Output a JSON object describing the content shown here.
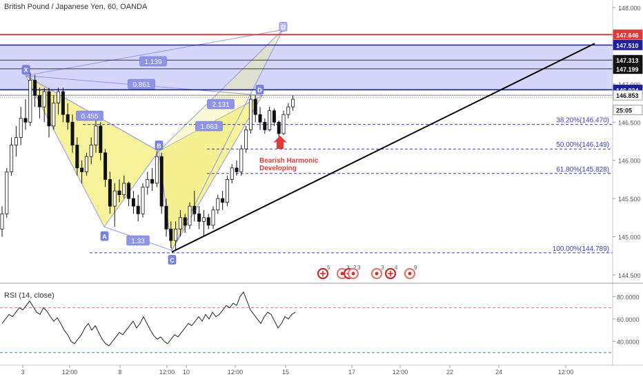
{
  "header": {
    "title": "British Pound / Japanese Yen, 60, OANDA"
  },
  "colors": {
    "up": "#111111",
    "down": "#111111",
    "red_line": "#e53935",
    "blue_line": "#1e1ea0",
    "zone_fill": "#c9cdf7",
    "harmonic_fill": "#f3ef7a",
    "harmonic_line": "#8f96e8",
    "fib_line": "#3b3bb0",
    "trend_line": "#000000",
    "rsi_line": "#222222"
  },
  "chart_data": [
    {
      "type": "candlestick",
      "title": "British Pound / Japanese Yen, 60, OANDA",
      "ylim": [
        144.4,
        148.1
      ],
      "price_ticks": [
        "148.000",
        "147.500",
        "147.000",
        "146.500",
        "146.000",
        "145.500",
        "145.000",
        "144.500"
      ],
      "x_ticks": [
        "3",
        "12:00",
        "8",
        "12:00",
        "10",
        "12:00",
        "15",
        "17",
        "12:00",
        "22",
        "24",
        "12:00"
      ],
      "price_labels": [
        {
          "text": "147.646",
          "value": 147.646,
          "style": "red"
        },
        {
          "text": "147.510",
          "value": 147.51,
          "style": "blue"
        },
        {
          "text": "147.313",
          "value": 147.313,
          "style": "black"
        },
        {
          "text": "147.199",
          "value": 147.199,
          "style": "black"
        },
        {
          "text": "146.924",
          "value": 146.924,
          "style": "blue"
        },
        {
          "text": "146.853",
          "value": 146.853,
          "style": "outline"
        },
        {
          "text": "25:05",
          "value": 146.66,
          "style": "outline"
        }
      ],
      "resistance_lines": [
        147.646,
        147.51,
        147.313,
        147.199,
        146.924,
        146.853
      ],
      "zone": [
        146.924,
        147.51
      ],
      "fib_levels": [
        {
          "label": "38.20%(146.470)",
          "value": 146.47
        },
        {
          "label": "50.00%(146.149)",
          "value": 146.149
        },
        {
          "label": "61.80%(145.828)",
          "value": 145.828
        },
        {
          "label": "100.00%(144.789)",
          "value": 144.789
        }
      ],
      "pattern_points": [
        {
          "label": "X",
          "value": 147.11
        },
        {
          "label": "A",
          "value": 145.13
        },
        {
          "label": "B",
          "value": 146.12
        },
        {
          "label": "C",
          "value": 144.82
        },
        {
          "label": "D",
          "value": 146.85
        },
        {
          "label": "D",
          "value": 147.71
        }
      ],
      "ratios": [
        "1.139",
        "0.861",
        "0.455",
        "2.131",
        "1.663",
        "1.33"
      ],
      "annotation": {
        "line1": "Bearish Harmonic",
        "line2": "Developing"
      },
      "events": [
        {
          "icon": "flag-uk-icon",
          "count": "5"
        },
        {
          "icon": "flag-jp-icon",
          "count": "3"
        },
        {
          "icon": "flag-uk-icon",
          "count": "2"
        },
        {
          "icon": "flag-jp-icon",
          "count": "3"
        },
        {
          "icon": "flag-jp-icon",
          "count": "3"
        },
        {
          "icon": "flag-uk-icon",
          "count": "4"
        },
        {
          "icon": "flag-jp-icon",
          "count": "9"
        }
      ],
      "series": [
        {
          "values": [
            {
              "o": 145.1,
              "h": 145.4,
              "l": 145.0,
              "c": 145.3
            },
            {
              "o": 145.3,
              "h": 145.9,
              "l": 145.25,
              "c": 145.85
            },
            {
              "o": 145.85,
              "h": 146.3,
              "l": 145.8,
              "c": 146.2
            },
            {
              "o": 146.2,
              "h": 146.45,
              "l": 146.05,
              "c": 146.3
            },
            {
              "o": 146.3,
              "h": 146.7,
              "l": 146.2,
              "c": 146.55
            },
            {
              "o": 146.55,
              "h": 146.8,
              "l": 146.4,
              "c": 146.5
            },
            {
              "o": 146.5,
              "h": 147.15,
              "l": 146.45,
              "c": 147.05
            },
            {
              "o": 147.05,
              "h": 147.12,
              "l": 146.7,
              "c": 146.85
            },
            {
              "o": 146.85,
              "h": 146.95,
              "l": 146.55,
              "c": 146.7
            },
            {
              "o": 146.7,
              "h": 146.95,
              "l": 146.5,
              "c": 146.9
            },
            {
              "o": 146.9,
              "h": 146.95,
              "l": 146.3,
              "c": 146.45
            },
            {
              "o": 146.45,
              "h": 146.85,
              "l": 146.4,
              "c": 146.75
            },
            {
              "o": 146.75,
              "h": 146.95,
              "l": 146.6,
              "c": 146.9
            },
            {
              "o": 146.9,
              "h": 146.95,
              "l": 146.5,
              "c": 146.6
            },
            {
              "o": 146.6,
              "h": 146.75,
              "l": 146.4,
              "c": 146.5
            },
            {
              "o": 146.5,
              "h": 146.6,
              "l": 146.1,
              "c": 146.2
            },
            {
              "o": 146.2,
              "h": 146.3,
              "l": 145.8,
              "c": 145.9
            },
            {
              "o": 145.9,
              "h": 146.0,
              "l": 145.7,
              "c": 145.85
            },
            {
              "o": 145.85,
              "h": 146.1,
              "l": 145.8,
              "c": 146.05
            },
            {
              "o": 146.05,
              "h": 146.3,
              "l": 145.95,
              "c": 146.2
            },
            {
              "o": 146.2,
              "h": 146.55,
              "l": 146.1,
              "c": 146.45
            },
            {
              "o": 146.45,
              "h": 146.5,
              "l": 146.0,
              "c": 146.1
            },
            {
              "o": 146.1,
              "h": 146.15,
              "l": 145.65,
              "c": 145.75
            },
            {
              "o": 145.75,
              "h": 145.85,
              "l": 145.3,
              "c": 145.4
            },
            {
              "o": 145.4,
              "h": 145.7,
              "l": 145.13,
              "c": 145.6
            },
            {
              "o": 145.6,
              "h": 145.75,
              "l": 145.45,
              "c": 145.55
            },
            {
              "o": 145.55,
              "h": 145.8,
              "l": 145.5,
              "c": 145.7
            },
            {
              "o": 145.7,
              "h": 145.72,
              "l": 145.4,
              "c": 145.5
            },
            {
              "o": 145.5,
              "h": 145.6,
              "l": 145.3,
              "c": 145.4
            },
            {
              "o": 145.4,
              "h": 145.55,
              "l": 145.2,
              "c": 145.3
            },
            {
              "o": 145.3,
              "h": 145.7,
              "l": 145.25,
              "c": 145.65
            },
            {
              "o": 145.65,
              "h": 145.85,
              "l": 145.55,
              "c": 145.75
            },
            {
              "o": 145.75,
              "h": 145.9,
              "l": 145.6,
              "c": 145.7
            },
            {
              "o": 145.7,
              "h": 146.12,
              "l": 145.65,
              "c": 146.05
            },
            {
              "o": 146.05,
              "h": 146.1,
              "l": 145.3,
              "c": 145.4
            },
            {
              "o": 145.4,
              "h": 145.5,
              "l": 145.0,
              "c": 145.1
            },
            {
              "o": 145.1,
              "h": 145.2,
              "l": 144.85,
              "c": 144.95
            },
            {
              "o": 144.95,
              "h": 145.2,
              "l": 144.82,
              "c": 145.1
            },
            {
              "o": 145.1,
              "h": 145.35,
              "l": 145.0,
              "c": 145.25
            },
            {
              "o": 145.25,
              "h": 145.3,
              "l": 145.05,
              "c": 145.15
            },
            {
              "o": 145.15,
              "h": 145.45,
              "l": 145.1,
              "c": 145.4
            },
            {
              "o": 145.4,
              "h": 145.6,
              "l": 145.2,
              "c": 145.3
            },
            {
              "o": 145.3,
              "h": 145.4,
              "l": 145.1,
              "c": 145.2
            },
            {
              "o": 145.2,
              "h": 145.35,
              "l": 145.0,
              "c": 145.25
            },
            {
              "o": 145.25,
              "h": 145.3,
              "l": 145.1,
              "c": 145.15
            },
            {
              "o": 145.15,
              "h": 145.4,
              "l": 145.1,
              "c": 145.35
            },
            {
              "o": 145.35,
              "h": 145.55,
              "l": 145.3,
              "c": 145.5
            },
            {
              "o": 145.5,
              "h": 145.6,
              "l": 145.35,
              "c": 145.45
            },
            {
              "o": 145.45,
              "h": 145.8,
              "l": 145.4,
              "c": 145.75
            },
            {
              "o": 145.75,
              "h": 145.95,
              "l": 145.7,
              "c": 145.9
            },
            {
              "o": 145.9,
              "h": 146.0,
              "l": 145.8,
              "c": 145.85
            },
            {
              "o": 145.85,
              "h": 146.2,
              "l": 145.8,
              "c": 146.15
            },
            {
              "o": 146.15,
              "h": 146.45,
              "l": 146.1,
              "c": 146.4
            },
            {
              "o": 146.4,
              "h": 146.85,
              "l": 146.35,
              "c": 146.8
            },
            {
              "o": 146.8,
              "h": 146.85,
              "l": 146.5,
              "c": 146.6
            },
            {
              "o": 146.6,
              "h": 146.7,
              "l": 146.4,
              "c": 146.5
            },
            {
              "o": 146.5,
              "h": 146.55,
              "l": 146.35,
              "c": 146.4
            },
            {
              "o": 146.4,
              "h": 146.7,
              "l": 146.38,
              "c": 146.65
            },
            {
              "o": 146.65,
              "h": 146.68,
              "l": 146.45,
              "c": 146.5
            },
            {
              "o": 146.5,
              "h": 146.52,
              "l": 146.3,
              "c": 146.35
            },
            {
              "o": 146.35,
              "h": 146.65,
              "l": 146.33,
              "c": 146.6
            },
            {
              "o": 146.6,
              "h": 146.75,
              "l": 146.55,
              "c": 146.7
            },
            {
              "o": 146.7,
              "h": 146.85,
              "l": 146.65,
              "c": 146.8
            }
          ]
        }
      ]
    },
    {
      "type": "line",
      "title": "RSI (14, close)",
      "ylim": [
        20,
        90
      ],
      "y_ticks": [
        "80.0000",
        "60.0000",
        "40.0000"
      ],
      "levels": [
        70,
        30
      ],
      "series": [
        {
          "values": [
            56,
            60,
            64,
            62,
            66,
            70,
            68,
            72,
            76,
            71,
            66,
            64,
            70,
            67,
            62,
            58,
            61,
            56,
            50,
            46,
            40,
            38,
            42,
            46,
            52,
            56,
            50,
            54,
            48,
            42,
            38,
            36,
            40,
            44,
            48,
            46,
            50,
            54,
            58,
            52,
            56,
            62,
            56,
            50,
            45,
            42,
            44,
            40,
            38,
            42,
            46,
            44,
            48,
            52,
            56,
            54,
            58,
            62,
            58,
            64,
            60,
            66,
            62,
            64,
            68,
            72,
            70,
            74,
            72,
            80,
            84,
            76,
            68,
            64,
            60,
            56,
            62,
            66,
            64,
            58,
            52,
            56,
            62,
            60,
            64,
            66
          ]
        }
      ]
    }
  ]
}
